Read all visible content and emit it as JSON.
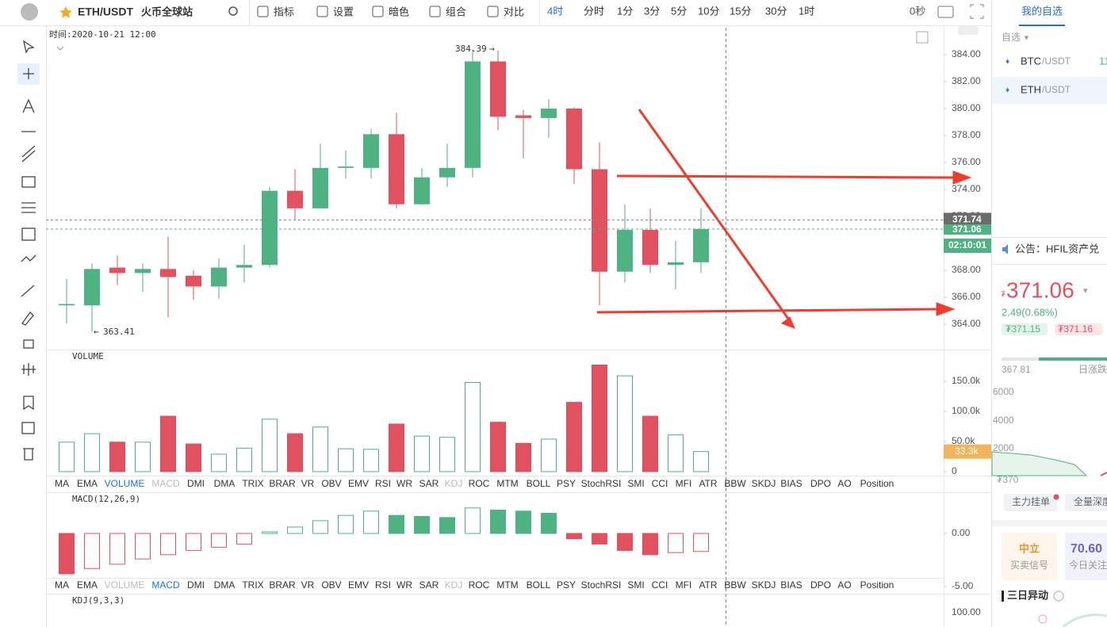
{
  "top_bar": {
    "symbol": "ETH/USDT",
    "exchange": "火币全球站",
    "tools": [
      "指标",
      "设置",
      "暗色",
      "组合",
      "对比"
    ],
    "intervals": [
      "4时",
      "分时",
      "1分",
      "3分",
      "5分",
      "10分",
      "15分",
      "30分",
      "1时"
    ],
    "countdown": "0秒"
  },
  "chart_data": {
    "type": "candlestick",
    "time_label": "时间:2020-10-21 12:00",
    "up_color": "#4eb283",
    "down_color": "#e1515f",
    "ylim": [
      362.12,
      386
    ],
    "yticks": [
      {
        "value": 364,
        "label": "364.00"
      },
      {
        "value": 366,
        "label": "366.00"
      },
      {
        "value": 368,
        "label": "368.00"
      },
      {
        "value": 370,
        "label": "370.00"
      },
      {
        "value": 372,
        "label": "372.00"
      },
      {
        "value": 374,
        "label": "374.00"
      },
      {
        "value": 376,
        "label": "376.00"
      },
      {
        "value": 378,
        "label": "378.00"
      },
      {
        "value": 380,
        "label": "380.00"
      },
      {
        "value": 382,
        "label": "382.00"
      },
      {
        "value": 384,
        "label": "384.00"
      }
    ],
    "candles": [
      {
        "open": 365.4,
        "high": 367.35,
        "low": 364.06,
        "close": 365.5
      },
      {
        "open": 365.4,
        "high": 368.5,
        "low": 363.41,
        "close": 368.1
      },
      {
        "open": 368.2,
        "high": 369.1,
        "low": 366.9,
        "close": 367.8
      },
      {
        "open": 367.8,
        "high": 368.5,
        "low": 366.4,
        "close": 368.1
      },
      {
        "open": 368.1,
        "high": 370.5,
        "low": 364.5,
        "close": 367.5
      },
      {
        "open": 367.6,
        "high": 368,
        "low": 365.8,
        "close": 366.8
      },
      {
        "open": 366.8,
        "high": 368.9,
        "low": 365.9,
        "close": 368.2
      },
      {
        "open": 368.2,
        "high": 369.9,
        "low": 367.1,
        "close": 368.4
      },
      {
        "open": 368.4,
        "high": 374.2,
        "low": 368.2,
        "close": 373.9
      },
      {
        "open": 373.9,
        "high": 375.5,
        "low": 371.7,
        "close": 372.6
      },
      {
        "open": 372.6,
        "high": 377.4,
        "low": 372.6,
        "close": 375.6
      },
      {
        "open": 375.6,
        "high": 376.9,
        "low": 374.8,
        "close": 375.7
      },
      {
        "open": 375.6,
        "high": 378.5,
        "low": 374.8,
        "close": 378.1
      },
      {
        "open": 378.1,
        "high": 379.7,
        "low": 372.6,
        "close": 372.9
      },
      {
        "open": 372.9,
        "high": 375.6,
        "low": 372.9,
        "close": 374.9
      },
      {
        "open": 374.9,
        "high": 377.4,
        "low": 374.2,
        "close": 375.6
      },
      {
        "open": 375.6,
        "high": 384.39,
        "low": 374.9,
        "close": 383.5
      },
      {
        "open": 383.5,
        "high": 384.3,
        "low": 378.4,
        "close": 379.4
      },
      {
        "open": 379.5,
        "high": 379.9,
        "low": 376.3,
        "close": 379.3
      },
      {
        "open": 379.3,
        "high": 380.7,
        "low": 377.8,
        "close": 380
      },
      {
        "open": 380,
        "high": 380.1,
        "low": 374.4,
        "close": 375.5
      },
      {
        "open": 375.5,
        "high": 377.5,
        "low": 365.4,
        "close": 367.9
      },
      {
        "open": 367.9,
        "high": 372.9,
        "low": 367.1,
        "close": 371
      },
      {
        "open": 371,
        "high": 372.6,
        "low": 367.8,
        "close": 368.4
      },
      {
        "open": 368.4,
        "high": 370.2,
        "low": 366.6,
        "close": 368.6
      },
      {
        "open": 368.6,
        "high": 372.6,
        "low": 367.8,
        "close": 371.06
      }
    ],
    "mark_price": 371.74,
    "bar_countdown": "02:10:01",
    "volume": {
      "label": "VOLUME",
      "ylim": [
        0,
        202.6
      ],
      "yticks": [
        {
          "value": 150,
          "label": "150.0k"
        },
        {
          "value": 100,
          "label": "100.0k"
        },
        {
          "value": 50,
          "label": "50.0k"
        },
        0
      ],
      "values": [
        49,
        63,
        49,
        49,
        92,
        46,
        29,
        39,
        87,
        63,
        74,
        38,
        37,
        79,
        59,
        57,
        148,
        82,
        47,
        54,
        115,
        177,
        159,
        92,
        61,
        33.3
      ],
      "value_labels": [
        null,
        null,
        null,
        null,
        null,
        null,
        null,
        null,
        null,
        null,
        null,
        null,
        null,
        null,
        null,
        null,
        null,
        null,
        null,
        null,
        null,
        null,
        null,
        null,
        null,
        "33.3k"
      ]
    },
    "macd": {
      "label": "MACD(12,26,9)",
      "ylim": [
        -5.6,
        3.88
      ],
      "yticks": [
        {
          "value": 0,
          "label": "0.00"
        },
        {
          "value": -5,
          "label": "-5.00"
        }
      ],
      "values": [
        -3.8,
        -3.3,
        -2.9,
        -2.4,
        -2,
        -1.6,
        -1.3,
        -1,
        0.15,
        0.6,
        1.2,
        1.7,
        2.1,
        1.7,
        1.6,
        1.5,
        2.4,
        2.2,
        2.1,
        1.9,
        -0.5,
        -1,
        -1.6,
        -2,
        -1.8,
        -1.7
      ]
    },
    "kdj": {
      "label": "KDJ(9,3,3)",
      "yticks": [
        {
          "value": 100,
          "label": "100.00"
        }
      ]
    }
  },
  "indicators": [
    "MA",
    "EMA",
    "VOLUME",
    "MACD",
    "DMI",
    "DMA",
    "TRIX",
    "BRAR",
    "VR",
    "OBV",
    "EMV",
    "RSI",
    "WR",
    "SAR",
    "KDJ",
    "ROC",
    "MTM",
    "BOLL",
    "PSY",
    "StochRSI",
    "SMI",
    "CCI",
    "MFI",
    "ATR",
    "BBW",
    "SKDJ",
    "BIAS",
    "DPO",
    "AO",
    "Position"
  ],
  "right_panel": {
    "tab": "我的自选",
    "group": "自选",
    "watchlist": [
      {
        "base": "BTC",
        "quote": "/USDT",
        "price": "11"
      },
      {
        "base": "ETH",
        "quote": "/USDT"
      }
    ],
    "notice": "公告：HFIL资产兑",
    "currency": "₮",
    "price": "371.06",
    "change": "2.49(0.68%)",
    "bid": "₮371.15",
    "ask": "₮371.16",
    "low": "367.81",
    "range_label": "日涨跌",
    "depth_ticks": [
      "6000",
      "4000",
      "2000"
    ],
    "depth_price": "₮370",
    "depth_tabs": [
      "主力挂单",
      "全量深度"
    ],
    "signal": {
      "value": "中立",
      "label": "买卖信号"
    },
    "attention": {
      "value": "70.60",
      "label": "今日关注"
    },
    "section": "三日异动"
  }
}
